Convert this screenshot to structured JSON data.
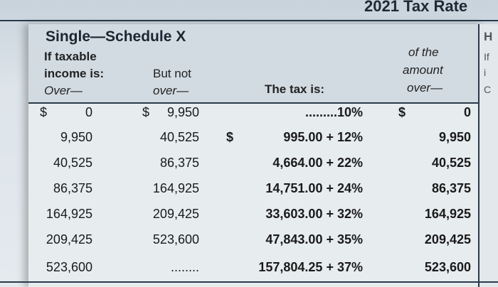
{
  "table_title": "2021 Tax Rate",
  "schedule_title": "Single—Schedule X",
  "headers": {
    "if_taxable": "If taxable",
    "income_is": "income is:",
    "over": "Over—",
    "but_not": "But not",
    "but_over": "over—",
    "tax_is": "The tax is:",
    "of_the": "of the",
    "amount": "amount",
    "amount_over": "over—"
  },
  "right_fragments": [
    "H",
    "If",
    "i",
    "C"
  ],
  "rows": [
    {
      "over": "0",
      "over_prefix": "$",
      "but_not": "9,950",
      "but_not_prefix": "$",
      "tax": ".........10%",
      "tax_prefix": "",
      "amount_over": "0",
      "amount_prefix": "$"
    },
    {
      "over": "9,950",
      "over_prefix": "",
      "but_not": "40,525",
      "but_not_prefix": "",
      "tax": "995.00 + 12%",
      "tax_prefix": "$",
      "amount_over": "9,950",
      "amount_prefix": ""
    },
    {
      "over": "40,525",
      "over_prefix": "",
      "but_not": "86,375",
      "but_not_prefix": "",
      "tax": "4,664.00 + 22%",
      "tax_prefix": "",
      "amount_over": "40,525",
      "amount_prefix": ""
    },
    {
      "over": "86,375",
      "over_prefix": "",
      "but_not": "164,925",
      "but_not_prefix": "",
      "tax": "14,751.00 + 24%",
      "tax_prefix": "",
      "amount_over": "86,375",
      "amount_prefix": ""
    },
    {
      "over": "164,925",
      "over_prefix": "",
      "but_not": "209,425",
      "but_not_prefix": "",
      "tax": "33,603.00 + 32%",
      "tax_prefix": "",
      "amount_over": "164,925",
      "amount_prefix": ""
    },
    {
      "over": "209,425",
      "over_prefix": "",
      "but_not": "523,600",
      "but_not_prefix": "",
      "tax": "47,843.00 + 35%",
      "tax_prefix": "",
      "amount_over": "209,425",
      "amount_prefix": ""
    },
    {
      "over": "523,600",
      "over_prefix": "",
      "but_not": "........",
      "but_not_prefix": "",
      "tax": "157,804.25 + 37%",
      "tax_prefix": "",
      "amount_over": "523,600",
      "amount_prefix": ""
    }
  ]
}
